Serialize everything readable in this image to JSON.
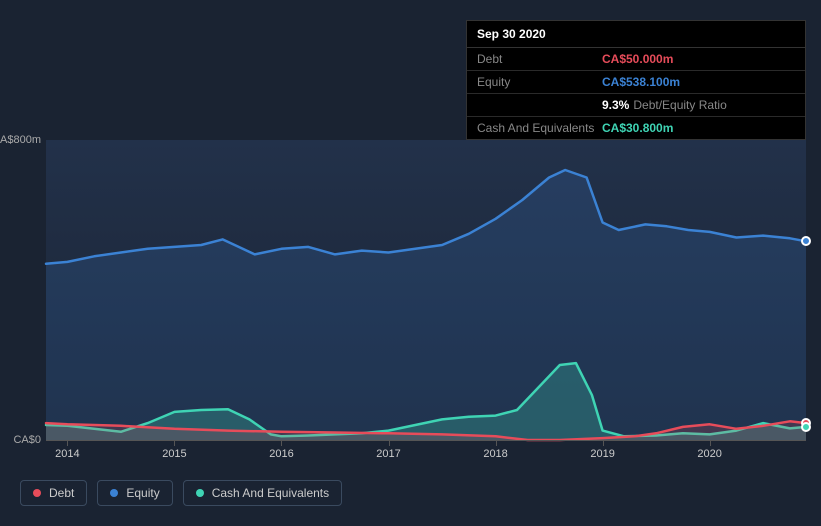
{
  "tooltip": {
    "date": "Sep 30 2020",
    "rows": [
      {
        "label": "Debt",
        "value": "CA$50.000m",
        "color": "#e74c5a"
      },
      {
        "label": "Equity",
        "value": "CA$538.100m",
        "color": "#3b82d4"
      },
      {
        "label": "",
        "value": "9.3%",
        "sub": "Debt/Equity Ratio",
        "color": "#ffffff"
      },
      {
        "label": "Cash And Equivalents",
        "value": "CA$30.800m",
        "color": "#3fd4b4"
      }
    ]
  },
  "chart": {
    "type": "line-area",
    "background_color": "#1a2332",
    "plot_bg_top": "#22314a",
    "plot_bg_bottom": "#1a2332",
    "ylim": [
      0,
      800
    ],
    "yticks": [
      {
        "v": 0,
        "label": "CA$0"
      },
      {
        "v": 800,
        "label": "CA$800m"
      }
    ],
    "xlim": [
      2013.8,
      2020.9
    ],
    "xticks": [
      {
        "v": 2014,
        "label": "2014"
      },
      {
        "v": 2015,
        "label": "2015"
      },
      {
        "v": 2016,
        "label": "2016"
      },
      {
        "v": 2017,
        "label": "2017"
      },
      {
        "v": 2018,
        "label": "2018"
      },
      {
        "v": 2019,
        "label": "2019"
      },
      {
        "v": 2020,
        "label": "2020"
      }
    ],
    "series": [
      {
        "name": "Equity",
        "color": "#3b82d4",
        "fill": "rgba(59,130,212,0.18)",
        "width": 2.5,
        "data": [
          [
            2013.8,
            470
          ],
          [
            2014.0,
            475
          ],
          [
            2014.25,
            490
          ],
          [
            2014.5,
            500
          ],
          [
            2014.75,
            510
          ],
          [
            2015.0,
            515
          ],
          [
            2015.25,
            520
          ],
          [
            2015.45,
            535
          ],
          [
            2015.6,
            515
          ],
          [
            2015.75,
            495
          ],
          [
            2016.0,
            510
          ],
          [
            2016.25,
            515
          ],
          [
            2016.5,
            495
          ],
          [
            2016.75,
            505
          ],
          [
            2017.0,
            500
          ],
          [
            2017.25,
            510
          ],
          [
            2017.5,
            520
          ],
          [
            2017.75,
            550
          ],
          [
            2018.0,
            590
          ],
          [
            2018.25,
            640
          ],
          [
            2018.5,
            700
          ],
          [
            2018.65,
            720
          ],
          [
            2018.85,
            700
          ],
          [
            2019.0,
            580
          ],
          [
            2019.15,
            560
          ],
          [
            2019.4,
            575
          ],
          [
            2019.6,
            570
          ],
          [
            2019.8,
            560
          ],
          [
            2020.0,
            555
          ],
          [
            2020.25,
            540
          ],
          [
            2020.5,
            545
          ],
          [
            2020.75,
            538
          ],
          [
            2020.9,
            530
          ]
        ]
      },
      {
        "name": "Cash And Equivalents",
        "color": "#3fd4b4",
        "fill": "rgba(63,212,180,0.25)",
        "width": 2.5,
        "data": [
          [
            2013.8,
            40
          ],
          [
            2014.0,
            38
          ],
          [
            2014.25,
            30
          ],
          [
            2014.5,
            22
          ],
          [
            2014.75,
            45
          ],
          [
            2015.0,
            75
          ],
          [
            2015.25,
            80
          ],
          [
            2015.5,
            82
          ],
          [
            2015.7,
            55
          ],
          [
            2015.9,
            15
          ],
          [
            2016.0,
            10
          ],
          [
            2016.25,
            12
          ],
          [
            2016.5,
            15
          ],
          [
            2016.75,
            18
          ],
          [
            2017.0,
            25
          ],
          [
            2017.25,
            40
          ],
          [
            2017.5,
            55
          ],
          [
            2017.75,
            62
          ],
          [
            2018.0,
            65
          ],
          [
            2018.2,
            80
          ],
          [
            2018.4,
            140
          ],
          [
            2018.6,
            200
          ],
          [
            2018.75,
            205
          ],
          [
            2018.9,
            120
          ],
          [
            2019.0,
            25
          ],
          [
            2019.2,
            10
          ],
          [
            2019.5,
            12
          ],
          [
            2019.75,
            18
          ],
          [
            2020.0,
            15
          ],
          [
            2020.25,
            25
          ],
          [
            2020.5,
            45
          ],
          [
            2020.75,
            31
          ],
          [
            2020.9,
            35
          ]
        ]
      },
      {
        "name": "Debt",
        "color": "#e74c5a",
        "fill": "rgba(231,76,90,0.18)",
        "width": 2.5,
        "data": [
          [
            2013.8,
            45
          ],
          [
            2014.0,
            42
          ],
          [
            2014.5,
            38
          ],
          [
            2015.0,
            30
          ],
          [
            2015.5,
            25
          ],
          [
            2016.0,
            22
          ],
          [
            2016.5,
            20
          ],
          [
            2017.0,
            18
          ],
          [
            2017.5,
            15
          ],
          [
            2018.0,
            10
          ],
          [
            2018.3,
            0
          ],
          [
            2018.6,
            0
          ],
          [
            2019.0,
            5
          ],
          [
            2019.3,
            10
          ],
          [
            2019.5,
            18
          ],
          [
            2019.75,
            35
          ],
          [
            2020.0,
            42
          ],
          [
            2020.25,
            30
          ],
          [
            2020.5,
            38
          ],
          [
            2020.75,
            50
          ],
          [
            2020.9,
            45
          ]
        ]
      }
    ],
    "end_markers": [
      {
        "series": "Equity",
        "x": 2020.9,
        "y": 530,
        "color": "#3b82d4"
      },
      {
        "series": "Debt",
        "x": 2020.9,
        "y": 45,
        "color": "#e74c5a"
      },
      {
        "series": "Cash And Equivalents",
        "x": 2020.9,
        "y": 35,
        "color": "#3fd4b4"
      }
    ]
  },
  "legend": {
    "items": [
      {
        "label": "Debt",
        "color": "#e74c5a"
      },
      {
        "label": "Equity",
        "color": "#3b82d4"
      },
      {
        "label": "Cash And Equivalents",
        "color": "#3fd4b4"
      }
    ],
    "border_color": "#3a4a5f",
    "text_color": "#cccccc",
    "fontsize": 12
  }
}
